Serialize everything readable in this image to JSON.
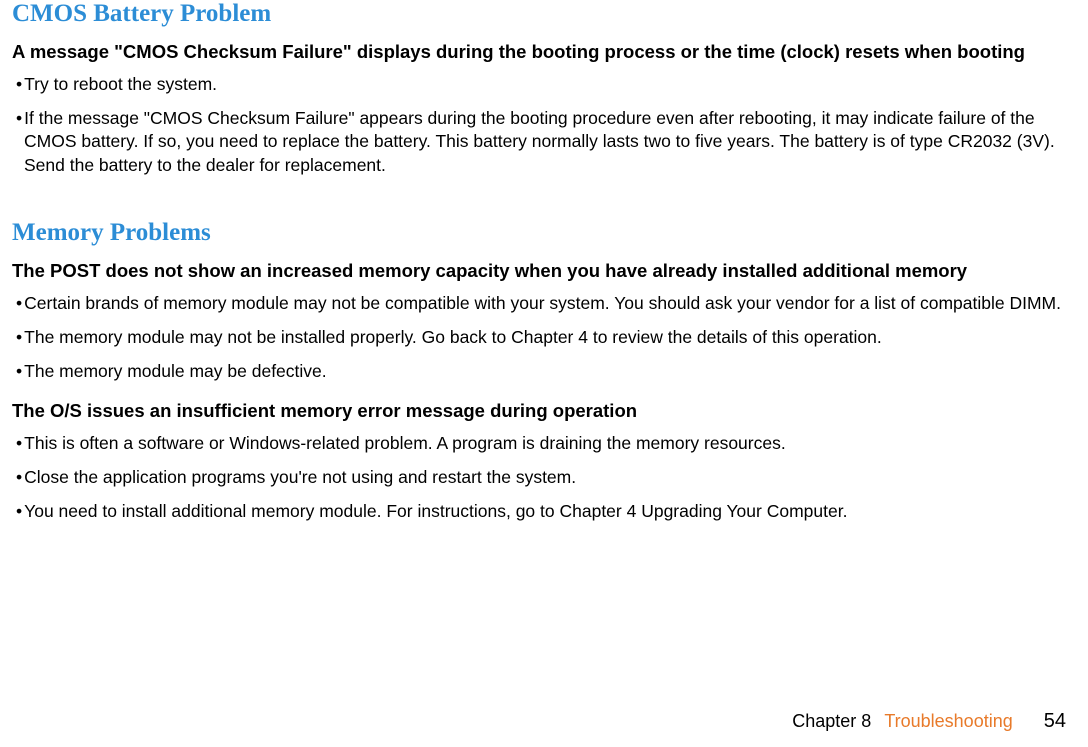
{
  "section1": {
    "title": "CMOS Battery Problem",
    "sub1": "A message \"CMOS Checksum Failure\" displays during the booting process or the time (clock) resets when booting",
    "b1": "Try to reboot the system.",
    "b2": "If the message \"CMOS Checksum Failure\" appears during the booting procedure even after rebooting, it may indicate failure of the CMOS battery. If so, you need to replace the battery. This battery normally lasts two to five years. The battery is of type CR2032 (3V). Send the battery to the dealer for replacement."
  },
  "section2": {
    "title": "Memory Problems",
    "sub1": "The POST does not show an increased memory capacity when you have already installed additional memory",
    "b1": "Certain brands of memory module may not be compatible with your system. You should ask your vendor for a list of compatible DIMM.",
    "b2": "The memory module may not be installed properly. Go back to Chapter 4 to review the details of this operation.",
    "b3": "The memory module may be defective.",
    "sub2": "The O/S issues an insufficient memory error message during operation",
    "b4": "This is often a software or Windows-related problem. A program is draining the memory resources.",
    "b5": "Close the application programs you're not using and restart the system.",
    "b6": "You need to install additional memory module. For instructions, go to Chapter 4 Upgrading Your Computer."
  },
  "footer": {
    "chapter": "Chapter 8",
    "section": "Troubleshooting",
    "page": "54"
  }
}
